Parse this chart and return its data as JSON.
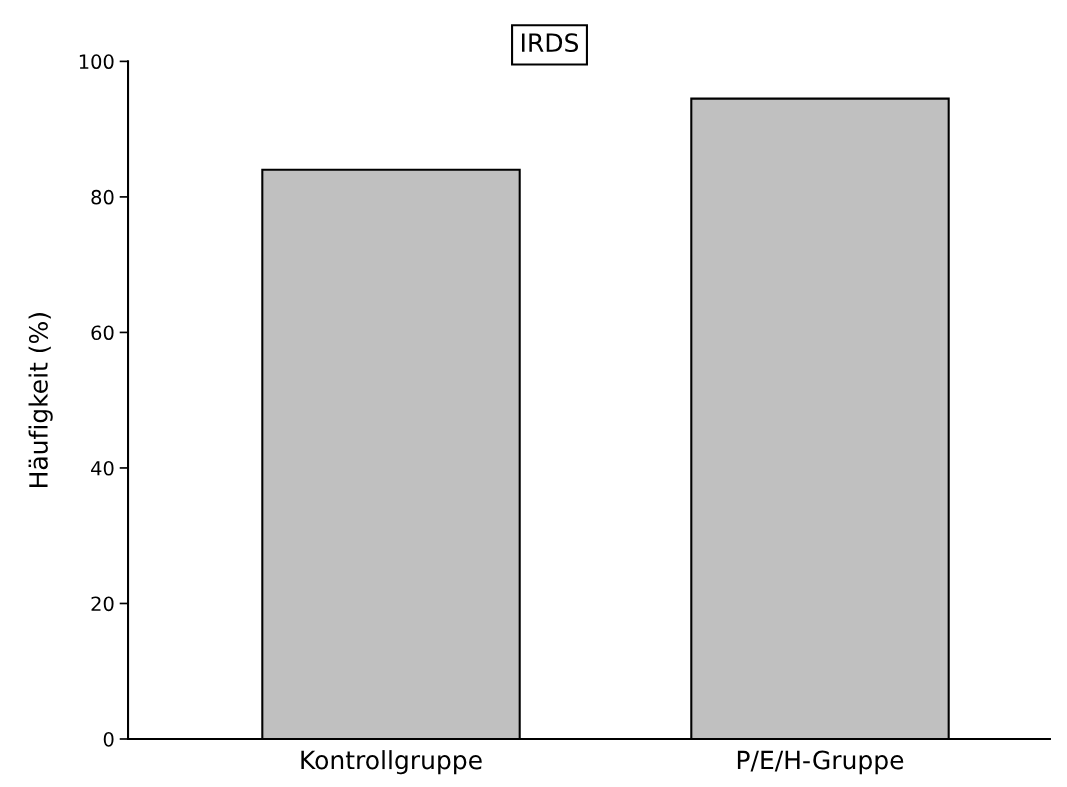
{
  "chart_data": {
    "type": "bar",
    "title": "IRDS",
    "ylabel": "Häufigkeit (%)",
    "categories": [
      "Kontrollgruppe",
      "P/E/H-Gruppe"
    ],
    "values": [
      84,
      94.5
    ],
    "color": "#c0c0c0",
    "ylim": [
      0,
      100
    ],
    "yticks": [
      0,
      20,
      40,
      60,
      80,
      100
    ],
    "grid": false,
    "legend": false
  }
}
